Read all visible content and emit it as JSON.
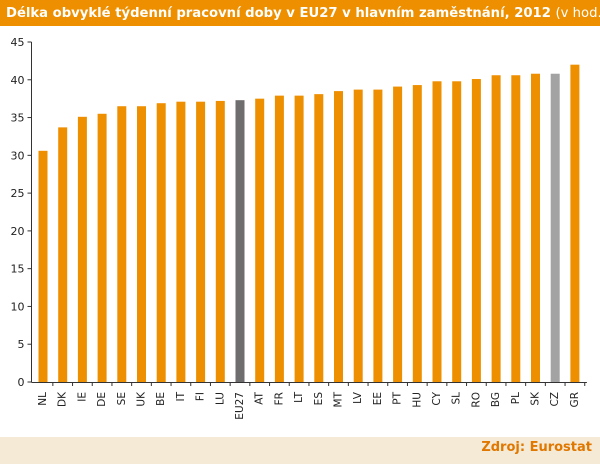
{
  "title": "Délka obvyklé týdenní pracovní doby v EU27 v hlavním zaměstnání, 2012",
  "title_unit": "(v hod.)",
  "source": "Zdroj: Eurostat",
  "colors": {
    "bar": "#ee8f00",
    "eu27": "#6e6e6e",
    "cz": "#a3a3a3",
    "title_bg": "#ee8f00",
    "source": "#e07800"
  },
  "chart_data": {
    "type": "bar",
    "title": "Délka obvyklé týdenní pracovní doby v EU27 v hlavním zaměstnání, 2012",
    "xlabel": "",
    "ylabel": "",
    "ylim": [
      0,
      45
    ],
    "yticks": [
      0,
      5,
      10,
      15,
      20,
      25,
      30,
      35,
      40,
      45
    ],
    "grid": false,
    "categories": [
      "NL",
      "DK",
      "IE",
      "DE",
      "SE",
      "UK",
      "BE",
      "IT",
      "FI",
      "LU",
      "EU27",
      "AT",
      "FR",
      "LT",
      "ES",
      "MT",
      "LV",
      "EE",
      "PT",
      "HU",
      "CY",
      "SL",
      "RO",
      "BG",
      "PL",
      "SK",
      "CZ",
      "GR"
    ],
    "values": [
      30.6,
      33.7,
      35.1,
      35.5,
      36.5,
      36.5,
      36.9,
      37.1,
      37.1,
      37.2,
      37.3,
      37.5,
      37.9,
      37.9,
      38.1,
      38.5,
      38.7,
      38.7,
      39.1,
      39.3,
      39.8,
      39.8,
      40.1,
      40.6,
      40.6,
      40.8,
      40.8,
      42.0
    ],
    "highlight": {
      "EU27": "#6e6e6e",
      "CZ": "#a3a3a3"
    }
  }
}
